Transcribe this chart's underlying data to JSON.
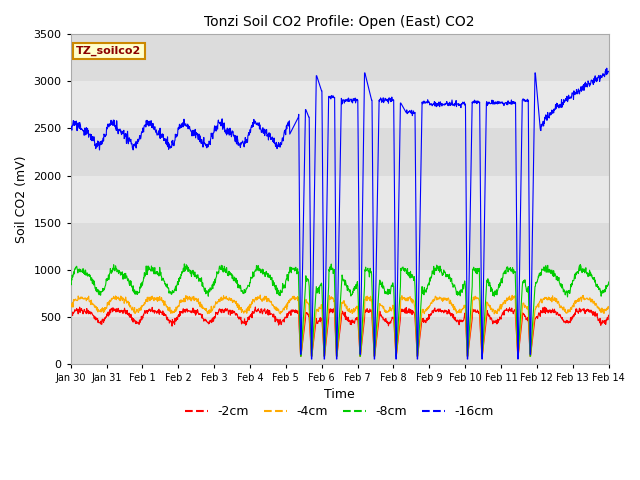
{
  "title": "Tonzi Soil CO2 Profile: Open (East) CO2",
  "ylabel": "Soil CO2 (mV)",
  "xlabel": "Time",
  "legend_label": "TZ_soilco2",
  "legend_entries": [
    "-2cm",
    "-4cm",
    "-8cm",
    "-16cm"
  ],
  "line_colors": [
    "#ff0000",
    "#ffaa00",
    "#00cc00",
    "#0000ff"
  ],
  "ylim": [
    0,
    3500
  ],
  "yticks": [
    0,
    500,
    1000,
    1500,
    2000,
    2500,
    3000,
    3500
  ],
  "band_colors": [
    "#dcdcdc",
    "#e8e8e8"
  ],
  "band_edges": [
    0,
    500,
    1000,
    1500,
    2000,
    2500,
    3000,
    3500
  ],
  "x_tick_labels": [
    "Jan 30",
    "Jan 31",
    "Feb 1",
    "Feb 2",
    "Feb 3",
    "Feb 4",
    "Feb 5",
    "Feb 6",
    "Feb 7",
    "Feb 8",
    "Feb 9",
    "Feb 10",
    "Feb 11",
    "Feb 12",
    "Feb 13",
    "Feb 14"
  ],
  "x_tick_positions": [
    0,
    1,
    2,
    3,
    4,
    5,
    6,
    7,
    8,
    9,
    10,
    11,
    12,
    13,
    14,
    15
  ],
  "figsize": [
    6.4,
    4.8
  ],
  "dpi": 100
}
